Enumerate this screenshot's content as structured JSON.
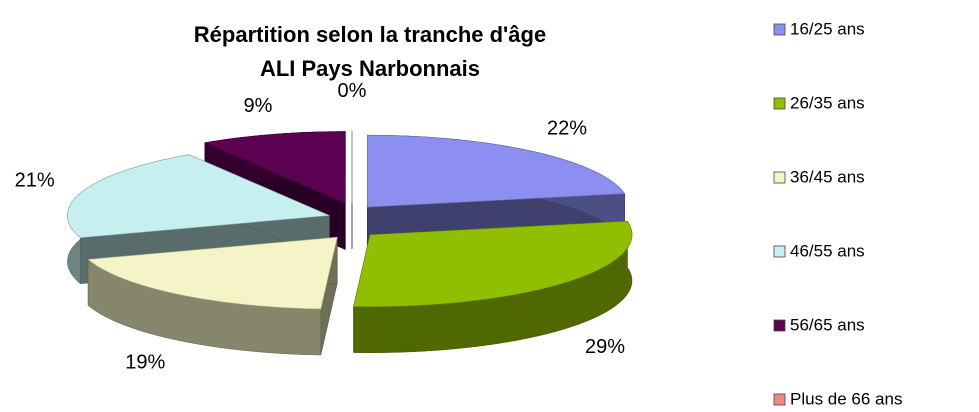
{
  "chart_data": {
    "type": "pie",
    "title": [
      "Répartition selon la tranche d'âge",
      "ALI Pays Narbonnais"
    ],
    "categories": [
      "16/25 ans",
      "26/35 ans",
      "36/45 ans",
      "46/55 ans",
      "56/65 ans",
      "Plus de 66 ans"
    ],
    "values": [
      22,
      29,
      19,
      21,
      9,
      0
    ],
    "value_labels": [
      "22%",
      "29%",
      "19%",
      "21%",
      "9%",
      "0%"
    ],
    "colors": [
      "#8c8ff0",
      "#8fbf00",
      "#f4f4c6",
      "#c6f0f0",
      "#5c0052",
      "#f08a80"
    ],
    "legend": "right"
  }
}
